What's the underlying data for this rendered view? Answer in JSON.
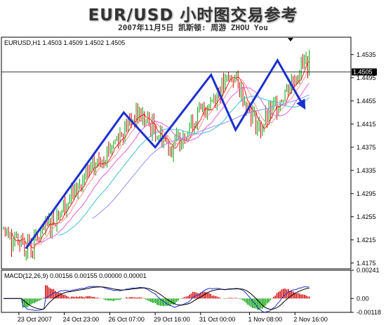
{
  "header": {
    "title": "EUR/USD 小时图交易参考",
    "subtitle": "2007年11月5日  凯斯顿: 周游 ZHOU You"
  },
  "chart_data": [
    {
      "type": "candlestick",
      "symbol_line": "EURUSD,H1  1.4503 1.4509 1.4502 1.4505",
      "current_price": "1.4505",
      "ylim": [
        1.4165,
        1.4565
      ],
      "y_ticks": [
        "1.4535",
        "1.4495",
        "1.4455",
        "1.4415",
        "1.4375",
        "1.4335",
        "1.4295",
        "1.4255",
        "1.4215",
        "1.4175"
      ],
      "x_ticks": [
        "23 Oct 2007",
        "24 Oct 23:00",
        "26 Oct 07:00",
        "29 Oct 16:00",
        "31 Oct 00:00",
        "1 Nov 08:00",
        "2 Nov 16:00"
      ],
      "trend_path": [
        {
          "t": 0.07,
          "price": 1.42
        },
        {
          "t": 0.35,
          "price": 1.4435
        },
        {
          "t": 0.44,
          "price": 1.4375
        },
        {
          "t": 0.6,
          "price": 1.45
        },
        {
          "t": 0.67,
          "price": 1.4405
        },
        {
          "t": 0.79,
          "price": 1.4525
        },
        {
          "t": 0.87,
          "price": 1.444
        }
      ],
      "colors": {
        "trend": "#1c2fcf",
        "bull": "#00a000",
        "bear": "#d00000"
      }
    },
    {
      "type": "macd",
      "label": "MACD(12,26,9) 0.00156 0.00155 0.00000 0.00001",
      "ylim": [
        -0.00118,
        0.00241
      ],
      "y_ticks": [
        "0.00241",
        "0.00",
        "-0.00118"
      ]
    }
  ]
}
